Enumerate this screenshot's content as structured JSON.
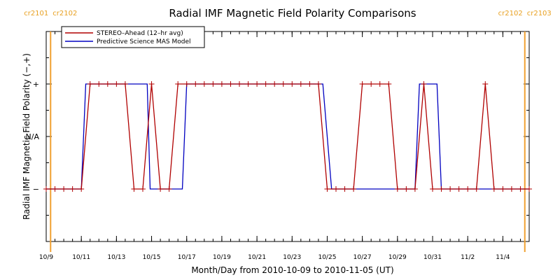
{
  "chart_data": {
    "type": "line",
    "title": "Radial IMF Magnetic Field Polarity Comparisons",
    "xlabel": "Month/Day from 2010-10-09 to 2010-11-05 (UT)",
    "ylabel": "Radial IMF Magnetic Field Polarity (−,+)",
    "xlim": [
      "2010-10-09T00:00",
      "2010-11-05T12:00"
    ],
    "ylim": [
      -2,
      2
    ],
    "x_ticks": [
      {
        "date": "2010-10-09",
        "label": "10/9"
      },
      {
        "date": "2010-10-11",
        "label": "10/11"
      },
      {
        "date": "2010-10-13",
        "label": "10/13"
      },
      {
        "date": "2010-10-15",
        "label": "10/15"
      },
      {
        "date": "2010-10-17",
        "label": "10/17"
      },
      {
        "date": "2010-10-19",
        "label": "10/19"
      },
      {
        "date": "2010-10-21",
        "label": "10/21"
      },
      {
        "date": "2010-10-23",
        "label": "10/23"
      },
      {
        "date": "2010-10-25",
        "label": "10/25"
      },
      {
        "date": "2010-10-27",
        "label": "10/27"
      },
      {
        "date": "2010-10-29",
        "label": "10/29"
      },
      {
        "date": "2010-10-31",
        "label": "10/31"
      },
      {
        "date": "2010-11-02",
        "label": "11/2"
      },
      {
        "date": "2010-11-04",
        "label": "11/4"
      }
    ],
    "y_ticks": [
      {
        "value": 1,
        "label": "+"
      },
      {
        "value": 0,
        "label": "N/A"
      },
      {
        "value": -1,
        "label": "−"
      }
    ],
    "carrington_markers": [
      {
        "date": "2010-10-09T06:00",
        "left_label": "cr2101",
        "right_label": "cr2102"
      },
      {
        "date": "2010-11-05T06:00",
        "left_label": "cr2102",
        "right_label": "cr2103"
      }
    ],
    "legend": {
      "placement": "top-left"
    },
    "grid": false,
    "series": [
      {
        "name": "STEREO–Ahead (12–hr avg)",
        "color": "#b00000",
        "markers": "plus",
        "points": [
          [
            "2010-10-09T00:00",
            -1
          ],
          [
            "2010-10-09T12:00",
            -1
          ],
          [
            "2010-10-10T00:00",
            -1
          ],
          [
            "2010-10-10T12:00",
            -1
          ],
          [
            "2010-10-11T00:00",
            -1
          ],
          [
            "2010-10-11T12:00",
            1
          ],
          [
            "2010-10-12T00:00",
            1
          ],
          [
            "2010-10-12T12:00",
            1
          ],
          [
            "2010-10-13T00:00",
            1
          ],
          [
            "2010-10-13T12:00",
            1
          ],
          [
            "2010-10-14T00:00",
            -1
          ],
          [
            "2010-10-14T12:00",
            -1
          ],
          [
            "2010-10-15T00:00",
            1
          ],
          [
            "2010-10-15T12:00",
            -1
          ],
          [
            "2010-10-16T00:00",
            -1
          ],
          [
            "2010-10-16T12:00",
            1
          ],
          [
            "2010-10-17T00:00",
            1
          ],
          [
            "2010-10-17T12:00",
            1
          ],
          [
            "2010-10-18T00:00",
            1
          ],
          [
            "2010-10-18T12:00",
            1
          ],
          [
            "2010-10-19T00:00",
            1
          ],
          [
            "2010-10-19T12:00",
            1
          ],
          [
            "2010-10-20T00:00",
            1
          ],
          [
            "2010-10-20T12:00",
            1
          ],
          [
            "2010-10-21T00:00",
            1
          ],
          [
            "2010-10-21T12:00",
            1
          ],
          [
            "2010-10-22T00:00",
            1
          ],
          [
            "2010-10-22T12:00",
            1
          ],
          [
            "2010-10-23T00:00",
            1
          ],
          [
            "2010-10-23T12:00",
            1
          ],
          [
            "2010-10-24T00:00",
            1
          ],
          [
            "2010-10-24T12:00",
            1
          ],
          [
            "2010-10-25T00:00",
            -1
          ],
          [
            "2010-10-25T12:00",
            -1
          ],
          [
            "2010-10-26T00:00",
            -1
          ],
          [
            "2010-10-26T12:00",
            -1
          ],
          [
            "2010-10-27T00:00",
            1
          ],
          [
            "2010-10-27T12:00",
            1
          ],
          [
            "2010-10-28T00:00",
            1
          ],
          [
            "2010-10-28T12:00",
            1
          ],
          [
            "2010-10-29T00:00",
            -1
          ],
          [
            "2010-10-29T12:00",
            -1
          ],
          [
            "2010-10-30T00:00",
            -1
          ],
          [
            "2010-10-30T12:00",
            1
          ],
          [
            "2010-10-31T00:00",
            -1
          ],
          [
            "2010-10-31T12:00",
            -1
          ],
          [
            "2010-11-01T00:00",
            -1
          ],
          [
            "2010-11-01T12:00",
            -1
          ],
          [
            "2010-11-02T00:00",
            -1
          ],
          [
            "2010-11-02T12:00",
            -1
          ],
          [
            "2010-11-03T00:00",
            1
          ],
          [
            "2010-11-03T12:00",
            -1
          ],
          [
            "2010-11-04T00:00",
            -1
          ],
          [
            "2010-11-04T12:00",
            -1
          ],
          [
            "2010-11-05T00:00",
            -1
          ],
          [
            "2010-11-05T12:00",
            -1
          ]
        ]
      },
      {
        "name": "Predictive Science MAS Model",
        "color": "#0000c0",
        "markers": "none",
        "points": [
          [
            "2010-10-09T00:00",
            -1
          ],
          [
            "2010-10-11T00:00",
            -1
          ],
          [
            "2010-10-11T06:00",
            1
          ],
          [
            "2010-10-14T18:00",
            1
          ],
          [
            "2010-10-14T22:00",
            -1
          ],
          [
            "2010-10-16T18:00",
            -1
          ],
          [
            "2010-10-17T00:00",
            1
          ],
          [
            "2010-10-24T18:00",
            1
          ],
          [
            "2010-10-25T06:00",
            -1
          ],
          [
            "2010-10-30T00:00",
            -1
          ],
          [
            "2010-10-30T06:00",
            1
          ],
          [
            "2010-10-31T06:00",
            1
          ],
          [
            "2010-10-31T12:00",
            -1
          ],
          [
            "2010-11-05T12:00",
            -1
          ]
        ]
      }
    ]
  }
}
